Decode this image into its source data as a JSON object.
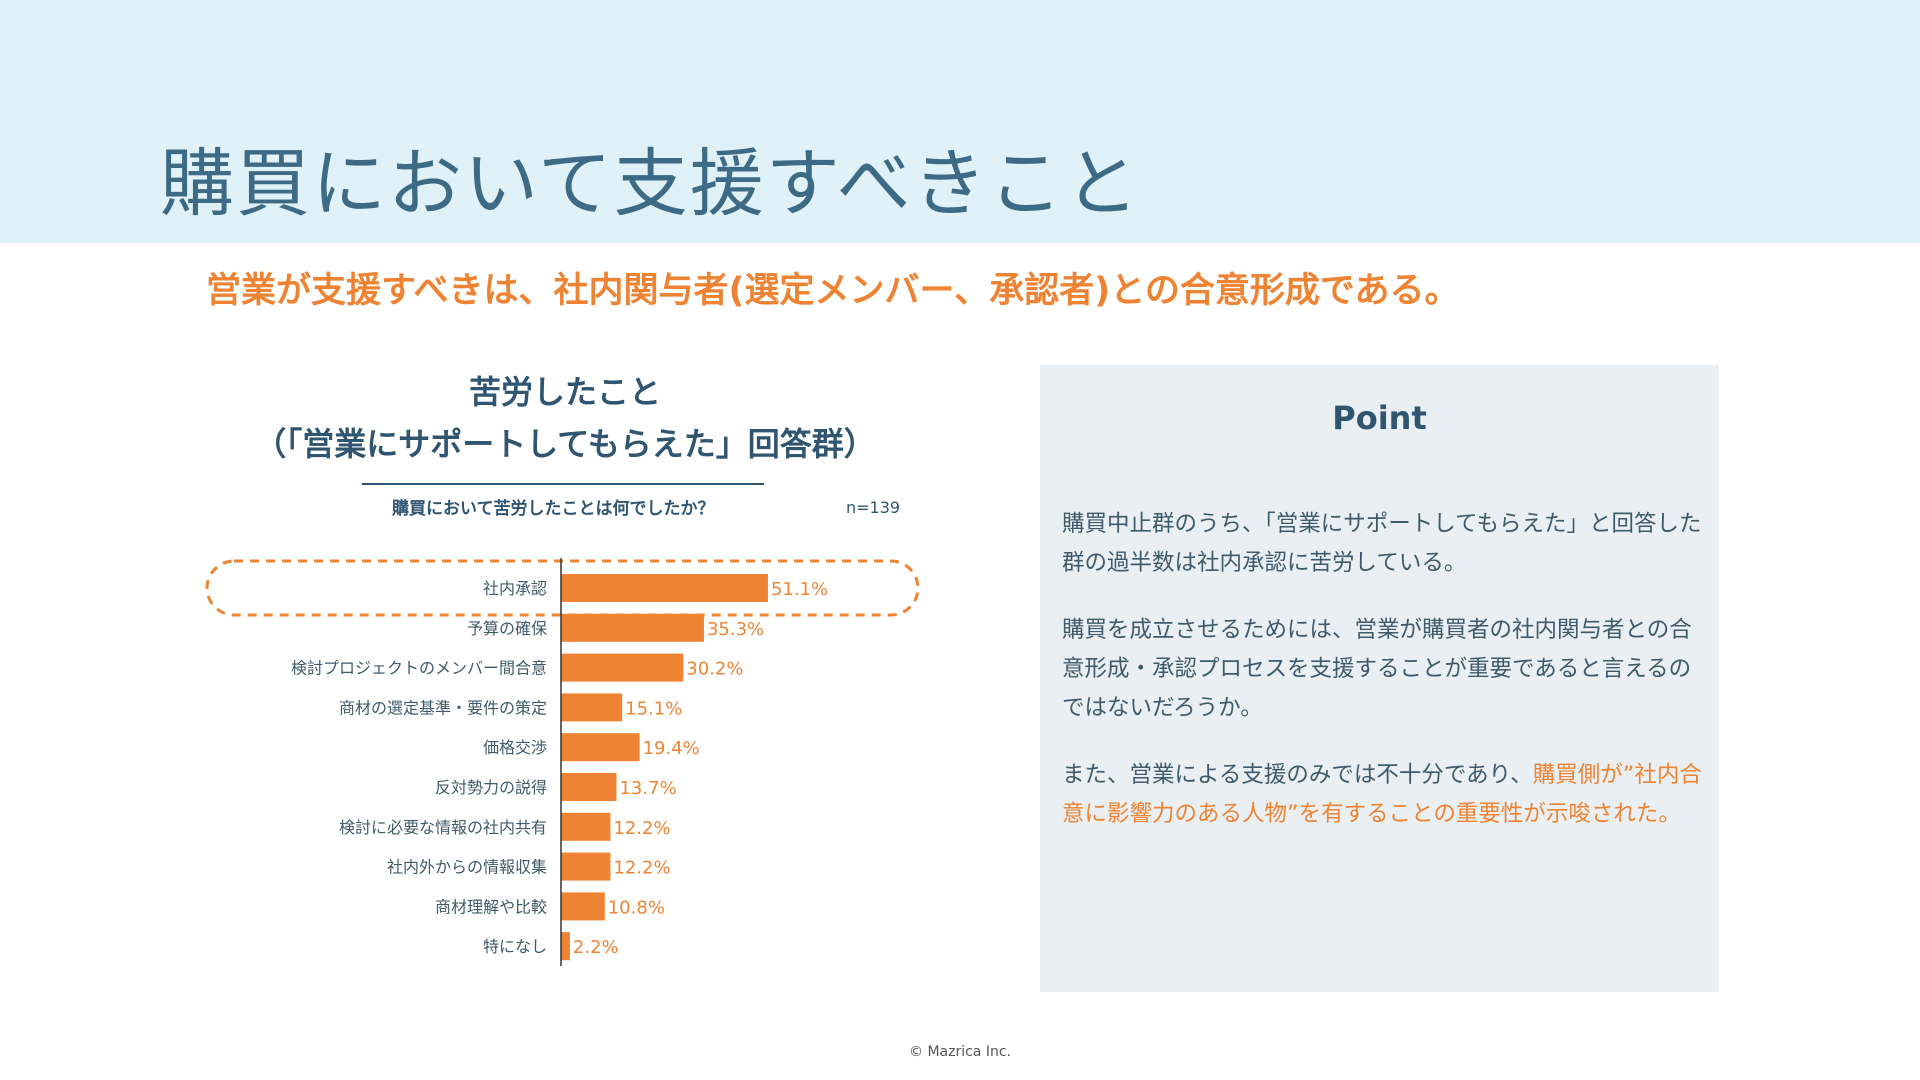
{
  "page": {
    "title": "購買において支援すべきこと",
    "subtitle": "営業が支援すべきは、社内関与者(選定メンバー、承認者)との合意形成である。",
    "copyright": "© Mazrica Inc."
  },
  "chart_data": {
    "type": "bar",
    "orientation": "horizontal",
    "title_line1": "苦労したこと",
    "title_line2": "（「営業にサポートしてもらえた」回答群）",
    "question": "購買において苦労したことは何でしたか？",
    "sample_size": "n=139",
    "categories": [
      "社内承認",
      "予算の確保",
      "検討プロジェクトのメンバー間合意",
      "商材の選定基準・要件の策定",
      "価格交渉",
      "反対勢力の説得",
      "検討に必要な情報の社内共有",
      "社内外からの情報収集",
      "商材理解や比較",
      "特になし"
    ],
    "values": [
      51.1,
      35.3,
      30.2,
      15.1,
      19.4,
      13.7,
      12.2,
      12.2,
      10.8,
      2.2
    ],
    "value_labels": [
      "51.1%",
      "35.3%",
      "30.2%",
      "15.1%",
      "19.4%",
      "13.7%",
      "12.2%",
      "12.2%",
      "10.8%",
      "2.2%"
    ],
    "highlighted_category": "社内承認",
    "bar_color": "#ee8433",
    "xlim": [
      0,
      100
    ],
    "grid": false
  },
  "point": {
    "title": "Point",
    "para1": "購買中止群のうち、「営業にサポートしてもらえた」と回答した群の過半数は社内承認に苦労している。",
    "para2": "購買を成立させるためには、営業が購買者の社内関与者との合意形成・承認プロセスを支援することが重要であると言えるのではないだろうか。",
    "para3_prefix": "また、営業による支援のみでは不十分であり、",
    "para3_highlight": "購買側が”社内合意に影響力のある人物”を有することの重要性が示唆された。"
  },
  "colors": {
    "accent": "#ee8433",
    "title": "#3d6b86",
    "navy": "#2f5570",
    "header_bg": "#e1f1f8",
    "point_bg": "#e9eff2"
  }
}
